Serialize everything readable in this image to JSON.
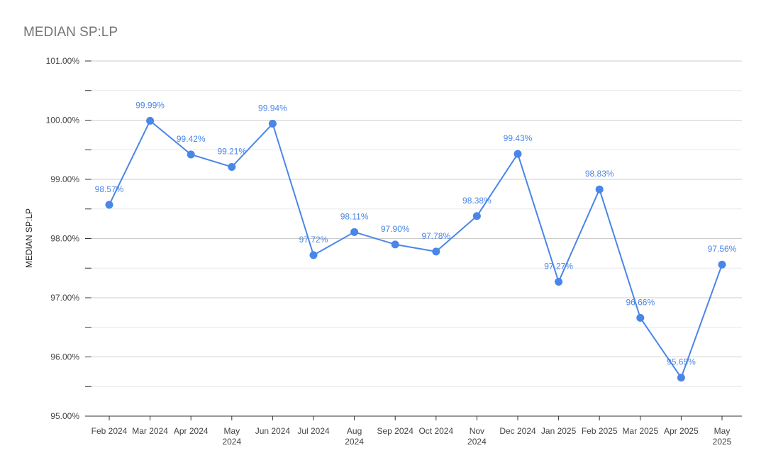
{
  "chart_data": {
    "type": "line",
    "title": "MEDIAN SP:LP",
    "xlabel": "",
    "ylabel": "MEDIAN SP:LP",
    "ylim": [
      95.0,
      101.0
    ],
    "y_ticks": [
      95.0,
      96.0,
      97.0,
      98.0,
      99.0,
      100.0,
      101.0
    ],
    "y_tick_labels": [
      "95.00%",
      "96.00%",
      "97.00%",
      "98.00%",
      "99.00%",
      "100.00%",
      "101.00%"
    ],
    "grid": true,
    "legend": "none",
    "categories": [
      [
        "Feb 2024"
      ],
      [
        "Mar 2024"
      ],
      [
        "Apr 2024"
      ],
      [
        "May",
        "2024"
      ],
      [
        "Jun 2024"
      ],
      [
        "Jul 2024"
      ],
      [
        "Aug",
        "2024"
      ],
      [
        "Sep 2024"
      ],
      [
        "Oct 2024"
      ],
      [
        "Nov",
        "2024"
      ],
      [
        "Dec 2024"
      ],
      [
        "Jan 2025"
      ],
      [
        "Feb 2025"
      ],
      [
        "Mar 2025"
      ],
      [
        "Apr 2025"
      ],
      [
        "May",
        "2025"
      ]
    ],
    "series": [
      {
        "values": [
          98.57,
          99.99,
          99.42,
          99.21,
          99.94,
          97.72,
          98.11,
          97.9,
          97.78,
          98.38,
          99.43,
          97.27,
          98.83,
          96.66,
          95.65,
          97.56
        ],
        "labels": [
          "98.57%",
          "99.99%",
          "99.42%",
          "99.21%",
          "99.94%",
          "97.72%",
          "98.11%",
          "97.90%",
          "97.78%",
          "98.38%",
          "99.43%",
          "97.27%",
          "98.83%",
          "96.66%",
          "95.65%",
          "97.56%"
        ],
        "color": "#4a86e8"
      }
    ]
  }
}
